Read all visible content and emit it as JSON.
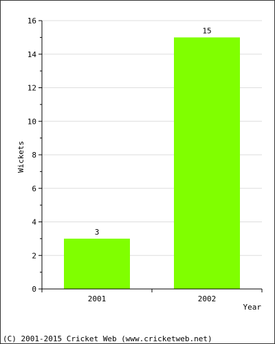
{
  "chart_data": {
    "type": "bar",
    "categories": [
      "2001",
      "2002"
    ],
    "values": [
      3,
      15
    ],
    "data_labels": [
      "3",
      "15"
    ],
    "xlabel": "Year",
    "ylabel": "Wickets",
    "ylim": [
      0,
      16
    ],
    "yticks": [
      0,
      2,
      4,
      6,
      8,
      10,
      12,
      14,
      16
    ],
    "ytick_labels": [
      "0",
      "2",
      "4",
      "6",
      "8",
      "10",
      "12",
      "14",
      "16"
    ],
    "grid": true,
    "bar_color": "#80ff00",
    "grid_color": "#dddddd"
  },
  "footer": {
    "copyright": "(C) 2001-2015 Cricket Web (www.cricketweb.net)"
  }
}
